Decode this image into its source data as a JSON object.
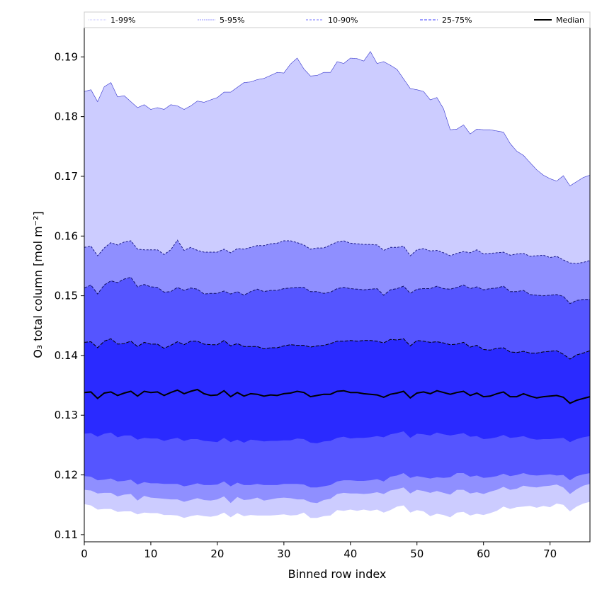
{
  "chart_data": {
    "type": "area",
    "title": "",
    "xlabel": "Binned row index",
    "ylabel": "O₃ total column [mol m⁻²]",
    "xlim": [
      0,
      76
    ],
    "ylim": [
      0.1088,
      0.1949
    ],
    "xticks": [
      0,
      10,
      20,
      30,
      40,
      50,
      60,
      70
    ],
    "yticks": [
      0.11,
      0.12,
      0.13,
      0.14,
      0.15,
      0.16,
      0.17,
      0.18,
      0.19
    ],
    "legend_position": "top (above plot)",
    "legend": [
      {
        "label": "1-99%",
        "color": "#ccccff"
      },
      {
        "label": "5-95%",
        "color": "#8f8fff"
      },
      {
        "label": "10-90%",
        "color": "#5555ff"
      },
      {
        "label": "25-75%",
        "color": "#2a2aff"
      },
      {
        "label": "Median",
        "color": "#000000"
      }
    ],
    "bands": [
      {
        "name": "1-99%",
        "color": "#ccccff",
        "upper": [
          0.1842,
          0.1845,
          0.1825,
          0.185,
          0.1857,
          0.1833,
          0.1835,
          0.1825,
          0.1815,
          0.182,
          0.1812,
          0.1815,
          0.1812,
          0.182,
          0.1818,
          0.1812,
          0.1818,
          0.1826,
          0.1824,
          0.1828,
          0.1832,
          0.1841,
          0.1841,
          0.1849,
          0.1857,
          0.1858,
          0.1862,
          0.1864,
          0.1869,
          0.1874,
          0.1873,
          0.1888,
          0.1898,
          0.188,
          0.1868,
          0.1869,
          0.1874,
          0.1874,
          0.1892,
          0.1889,
          0.1898,
          0.1897,
          0.1893,
          0.1909,
          0.1889,
          0.1892,
          0.1886,
          0.1879,
          0.1863,
          0.1847,
          0.1845,
          0.1842,
          0.1828,
          0.1832,
          0.1813,
          0.1778,
          0.1779,
          0.1786,
          0.1771,
          0.1779,
          0.1778,
          0.1778,
          0.1776,
          0.1774,
          0.1755,
          0.1742,
          0.1735,
          0.1723,
          0.1711,
          0.1702,
          0.1696,
          0.1692,
          0.1701,
          0.1684,
          0.1691,
          0.1698,
          0.1702
        ],
        "lower": [
          0.1151,
          0.1149,
          0.1142,
          0.1143,
          0.1143,
          0.1138,
          0.1139,
          0.1139,
          0.1134,
          0.1137,
          0.1136,
          0.1136,
          0.1133,
          0.1133,
          0.1132,
          0.1128,
          0.1131,
          0.1133,
          0.1131,
          0.113,
          0.1132,
          0.1137,
          0.1129,
          0.1136,
          0.1131,
          0.1133,
          0.1132,
          0.1132,
          0.1132,
          0.1133,
          0.1134,
          0.1132,
          0.1133,
          0.1137,
          0.1128,
          0.1128,
          0.1131,
          0.1132,
          0.1141,
          0.114,
          0.1142,
          0.114,
          0.1142,
          0.114,
          0.1142,
          0.1137,
          0.1141,
          0.1147,
          0.1149,
          0.1137,
          0.1141,
          0.1139,
          0.1131,
          0.1135,
          0.1133,
          0.1129,
          0.1137,
          0.1138,
          0.1132,
          0.1135,
          0.1133,
          0.1136,
          0.114,
          0.1147,
          0.1143,
          0.1146,
          0.1147,
          0.1148,
          0.1145,
          0.1148,
          0.1146,
          0.1152,
          0.115,
          0.1139,
          0.1147,
          0.1152,
          0.1155
        ]
      },
      {
        "name": "5-95%",
        "color": "#8f8fff",
        "upper": [
          0.1581,
          0.1583,
          0.1567,
          0.158,
          0.1589,
          0.1585,
          0.159,
          0.1592,
          0.1578,
          0.1577,
          0.1577,
          0.1577,
          0.1569,
          0.1577,
          0.1593,
          0.1576,
          0.1581,
          0.1576,
          0.1573,
          0.1573,
          0.1573,
          0.1578,
          0.1572,
          0.1579,
          0.1578,
          0.1581,
          0.1584,
          0.1584,
          0.1587,
          0.1588,
          0.1592,
          0.1592,
          0.1589,
          0.1585,
          0.1578,
          0.158,
          0.158,
          0.1585,
          0.159,
          0.1592,
          0.1588,
          0.1587,
          0.1586,
          0.1586,
          0.1585,
          0.1576,
          0.1581,
          0.1581,
          0.1583,
          0.1567,
          0.1577,
          0.1579,
          0.1575,
          0.1576,
          0.1572,
          0.1567,
          0.1571,
          0.1574,
          0.1572,
          0.1577,
          0.157,
          0.1571,
          0.1572,
          0.1573,
          0.1568,
          0.157,
          0.1571,
          0.1566,
          0.1567,
          0.1568,
          0.1564,
          0.1566,
          0.156,
          0.1555,
          0.1554,
          0.1556,
          0.1559
        ],
        "lower": [
          0.1175,
          0.1174,
          0.1169,
          0.117,
          0.117,
          0.1164,
          0.1167,
          0.1168,
          0.1157,
          0.1165,
          0.1162,
          0.1161,
          0.116,
          0.1159,
          0.1159,
          0.1155,
          0.1158,
          0.1161,
          0.1158,
          0.1157,
          0.1159,
          0.1164,
          0.1153,
          0.1163,
          0.1158,
          0.1159,
          0.1162,
          0.1157,
          0.1159,
          0.1161,
          0.1162,
          0.1161,
          0.1159,
          0.1159,
          0.1154,
          0.1153,
          0.1158,
          0.116,
          0.1168,
          0.117,
          0.1169,
          0.1169,
          0.1168,
          0.1169,
          0.1171,
          0.1168,
          0.1174,
          0.1176,
          0.1179,
          0.1169,
          0.1175,
          0.1173,
          0.117,
          0.1173,
          0.117,
          0.1167,
          0.1175,
          0.1175,
          0.1169,
          0.1171,
          0.1168,
          0.1172,
          0.1175,
          0.118,
          0.1175,
          0.1177,
          0.1182,
          0.118,
          0.1179,
          0.1181,
          0.1182,
          0.1184,
          0.1179,
          0.1168,
          0.1176,
          0.1182,
          0.1185
        ]
      },
      {
        "name": "10-90%",
        "color": "#5555ff",
        "upper": [
          0.1513,
          0.1518,
          0.1503,
          0.1518,
          0.1525,
          0.1522,
          0.1528,
          0.1531,
          0.1515,
          0.1519,
          0.1515,
          0.1514,
          0.1506,
          0.1507,
          0.1514,
          0.1509,
          0.1513,
          0.1511,
          0.1503,
          0.1504,
          0.1504,
          0.1508,
          0.1503,
          0.1507,
          0.1501,
          0.1507,
          0.1511,
          0.1507,
          0.1509,
          0.1509,
          0.1512,
          0.1513,
          0.1514,
          0.1514,
          0.1507,
          0.1507,
          0.1504,
          0.1506,
          0.1512,
          0.1514,
          0.1512,
          0.1511,
          0.151,
          0.1511,
          0.1512,
          0.1501,
          0.151,
          0.1512,
          0.1516,
          0.1504,
          0.1511,
          0.1512,
          0.1512,
          0.1516,
          0.1512,
          0.1511,
          0.1514,
          0.1518,
          0.1512,
          0.1515,
          0.151,
          0.1512,
          0.1513,
          0.1516,
          0.1507,
          0.1507,
          0.1509,
          0.1502,
          0.1501,
          0.15,
          0.1501,
          0.1502,
          0.1499,
          0.1487,
          0.1492,
          0.1494,
          0.1494
        ],
        "lower": [
          0.1198,
          0.1197,
          0.1191,
          0.1192,
          0.1194,
          0.1189,
          0.119,
          0.1192,
          0.1184,
          0.1188,
          0.1186,
          0.1186,
          0.1185,
          0.1185,
          0.1185,
          0.1181,
          0.1183,
          0.1186,
          0.1183,
          0.1183,
          0.1184,
          0.1189,
          0.1181,
          0.1187,
          0.1183,
          0.1183,
          0.1185,
          0.1183,
          0.1183,
          0.1183,
          0.1185,
          0.1185,
          0.1185,
          0.1184,
          0.1179,
          0.1179,
          0.1181,
          0.1183,
          0.1189,
          0.1191,
          0.1191,
          0.119,
          0.119,
          0.1191,
          0.1193,
          0.1189,
          0.1197,
          0.1199,
          0.1203,
          0.1195,
          0.1198,
          0.1196,
          0.1194,
          0.1196,
          0.1195,
          0.1196,
          0.1203,
          0.1203,
          0.1197,
          0.1199,
          0.1195,
          0.1196,
          0.1198,
          0.1202,
          0.1198,
          0.12,
          0.1203,
          0.12,
          0.1199,
          0.12,
          0.1201,
          0.1199,
          0.12,
          0.1191,
          0.1198,
          0.1201,
          0.1203
        ]
      },
      {
        "name": "25-75%",
        "color": "#2a2aff",
        "upper": [
          0.1422,
          0.1423,
          0.1413,
          0.1424,
          0.1428,
          0.1419,
          0.142,
          0.1424,
          0.1415,
          0.1422,
          0.1419,
          0.1419,
          0.1412,
          0.1417,
          0.1423,
          0.1418,
          0.1424,
          0.1424,
          0.1419,
          0.1418,
          0.1418,
          0.1425,
          0.1416,
          0.142,
          0.1415,
          0.1415,
          0.1415,
          0.1411,
          0.1413,
          0.1413,
          0.1416,
          0.1418,
          0.1417,
          0.1417,
          0.1414,
          0.1416,
          0.1417,
          0.142,
          0.1424,
          0.1424,
          0.1425,
          0.1424,
          0.1425,
          0.1425,
          0.1424,
          0.1421,
          0.1427,
          0.1426,
          0.1428,
          0.1416,
          0.1425,
          0.1424,
          0.1422,
          0.1423,
          0.1421,
          0.1418,
          0.1419,
          0.1422,
          0.1414,
          0.1417,
          0.141,
          0.1409,
          0.1412,
          0.1413,
          0.1406,
          0.1405,
          0.1407,
          0.1404,
          0.1404,
          0.1406,
          0.1407,
          0.1408,
          0.1402,
          0.1394,
          0.1401,
          0.1404,
          0.1408
        ],
        "lower": [
          0.1269,
          0.127,
          0.1264,
          0.1269,
          0.1271,
          0.1263,
          0.1266,
          0.1266,
          0.1259,
          0.1262,
          0.1261,
          0.1261,
          0.1257,
          0.126,
          0.1262,
          0.1257,
          0.126,
          0.126,
          0.1257,
          0.1256,
          0.1255,
          0.1262,
          0.1255,
          0.1259,
          0.1254,
          0.1259,
          0.1258,
          0.1256,
          0.1257,
          0.1257,
          0.1258,
          0.1258,
          0.1261,
          0.126,
          0.1254,
          0.1253,
          0.1256,
          0.1257,
          0.1262,
          0.1264,
          0.1261,
          0.1262,
          0.1262,
          0.1263,
          0.1265,
          0.1263,
          0.1268,
          0.127,
          0.1273,
          0.1262,
          0.1269,
          0.1268,
          0.1266,
          0.1271,
          0.1268,
          0.1266,
          0.1268,
          0.127,
          0.1264,
          0.1265,
          0.126,
          0.1261,
          0.1263,
          0.1267,
          0.1262,
          0.1263,
          0.1265,
          0.1261,
          0.1259,
          0.126,
          0.126,
          0.1261,
          0.1262,
          0.1255,
          0.126,
          0.1263,
          0.1265
        ]
      }
    ],
    "median": [
      0.1338,
      0.1339,
      0.1328,
      0.1337,
      0.1339,
      0.1333,
      0.1337,
      0.134,
      0.1332,
      0.134,
      0.1338,
      0.1339,
      0.1333,
      0.1338,
      0.1342,
      0.1336,
      0.134,
      0.1343,
      0.1336,
      0.1333,
      0.1334,
      0.1341,
      0.1331,
      0.1338,
      0.1332,
      0.1336,
      0.1335,
      0.1332,
      0.1334,
      0.1333,
      0.1336,
      0.1337,
      0.134,
      0.1338,
      0.1331,
      0.1333,
      0.1335,
      0.1335,
      0.134,
      0.1341,
      0.1338,
      0.1338,
      0.1336,
      0.1335,
      0.1334,
      0.133,
      0.1335,
      0.1337,
      0.134,
      0.1329,
      0.1337,
      0.1339,
      0.1336,
      0.1341,
      0.1338,
      0.1335,
      0.1338,
      0.134,
      0.1333,
      0.1337,
      0.1331,
      0.1332,
      0.1336,
      0.1339,
      0.1331,
      0.1331,
      0.1336,
      0.1332,
      0.1329,
      0.1331,
      0.1332,
      0.1333,
      0.133,
      0.132,
      0.1325,
      0.1328,
      0.1331
    ]
  }
}
